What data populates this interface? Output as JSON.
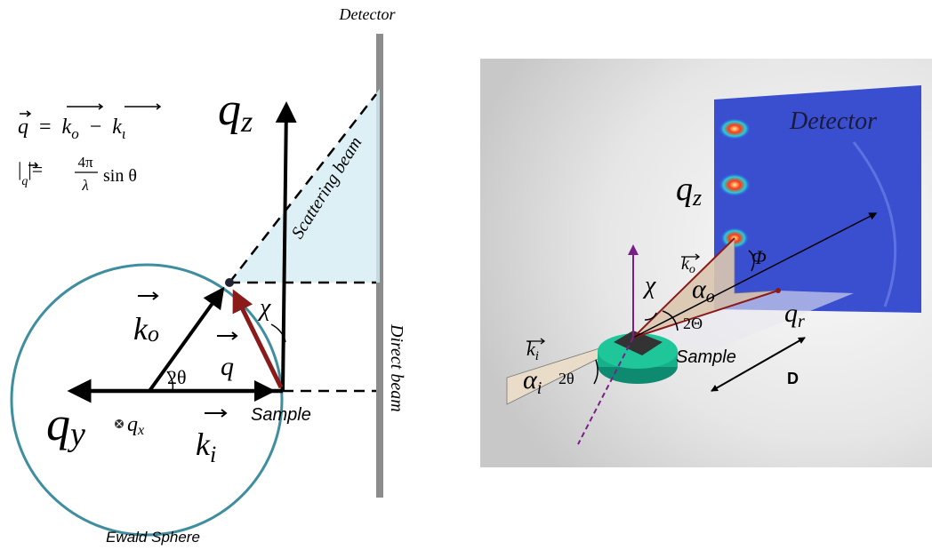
{
  "left_panel": {
    "detector": "Detector",
    "equation_1": [
      "q",
      "=",
      "k",
      "o",
      "−",
      "k",
      "ι"
    ],
    "equation_2": [
      "|",
      "q",
      "|=",
      "4π",
      "λ",
      "sin θ"
    ],
    "q_z": [
      "q",
      "z"
    ],
    "scattering_beam": "Scattering beam",
    "chi": "χ",
    "k_o": [
      "k",
      "o"
    ],
    "q": "q",
    "two_theta": "2θ",
    "q_y": [
      "q",
      "y"
    ],
    "q_x": [
      "q",
      "x"
    ],
    "k_i": [
      "k",
      "i"
    ],
    "sample": "Sample",
    "direct_beam": "Direct beam",
    "ewald_sphere": "Ewald Sphere"
  },
  "right_panel": {
    "detector": "Detector",
    "q_z": [
      "q",
      "z"
    ],
    "k_o": [
      "k",
      "o"
    ],
    "phi": "Φ",
    "chi": "χ",
    "alpha_o": [
      "α",
      "o"
    ],
    "two_theta_o": "2Θ",
    "q_r": [
      "q",
      "r"
    ],
    "k_i": [
      "k",
      "i"
    ],
    "alpha_i": [
      "α",
      "i"
    ],
    "two_theta_i": "2θ",
    "sample": "Sample",
    "distance": "D"
  }
}
